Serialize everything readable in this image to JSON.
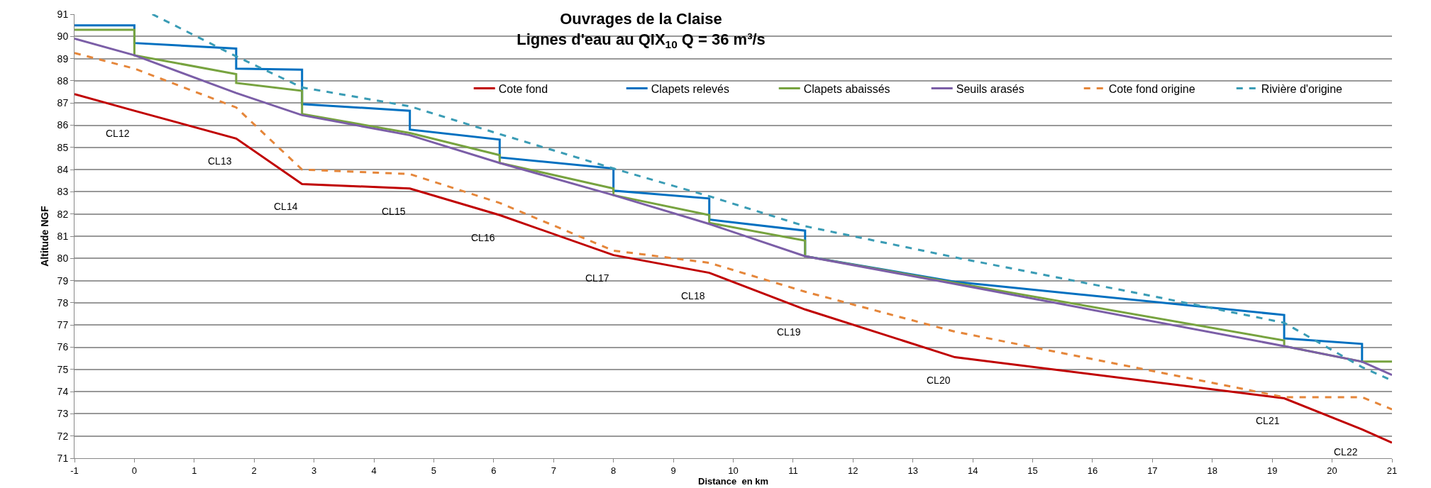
{
  "chart_data": {
    "type": "line",
    "title": "Ouvrages de la Claise",
    "subtitle": "Lignes d'eau au QIX$_{10}$ Q = 36 m³/s",
    "xlabel": "Distance  en km",
    "ylabel": "Altitude NGF",
    "xlim": [
      -1,
      21
    ],
    "xticks": [
      -1,
      0,
      1,
      2,
      3,
      4,
      5,
      6,
      7,
      8,
      9,
      10,
      11,
      12,
      13,
      14,
      15,
      16,
      17,
      18,
      19,
      20,
      21
    ],
    "ylim": [
      71,
      91
    ],
    "yticks": [
      71,
      72,
      73,
      74,
      75,
      76,
      77,
      78,
      79,
      80,
      81,
      82,
      83,
      84,
      85,
      86,
      87,
      88,
      89,
      90,
      91
    ],
    "grid": "y",
    "legend": "right",
    "marker": "none",
    "series": [
      {
        "name": "Cote fond",
        "color": "#c00000",
        "line_style": "solid",
        "x": [
          -1,
          0,
          1.7,
          2.8,
          4.6,
          6.1,
          8,
          9.6,
          11.2,
          13.7,
          19.2,
          20.5,
          21
        ],
        "values": [
          87.4,
          86.65,
          85.4,
          83.35,
          83.15,
          81.95,
          80.15,
          79.35,
          77.7,
          75.55,
          73.7,
          72.3,
          71.7
        ]
      },
      {
        "name": "Clapets relevés",
        "color": "#0070c0",
        "line_style": "solid",
        "x": [
          -1,
          0,
          0,
          1.7,
          1.7,
          2.8,
          2.8,
          4.6,
          4.6,
          6.1,
          6.1,
          8,
          8,
          9.6,
          9.6,
          11.2,
          11.2,
          13.7,
          19.2,
          19.2,
          20.5,
          20.5
        ],
        "values": [
          90.5,
          90.5,
          89.7,
          89.45,
          88.55,
          88.5,
          86.95,
          86.65,
          85.8,
          85.35,
          84.55,
          84.05,
          83.05,
          82.7,
          81.75,
          81.25,
          80.1,
          78.95,
          77.45,
          76.4,
          76.15,
          75.3
        ]
      },
      {
        "name": "Clapets abaissés",
        "color": "#77a33f",
        "line_style": "solid",
        "x": [
          -1,
          0,
          0,
          1.7,
          1.7,
          2.8,
          2.8,
          4.6,
          6.1,
          6.1,
          8,
          8,
          9.6,
          9.6,
          11.2,
          11.2,
          13.7,
          19.2,
          19.2,
          20.5,
          21
        ],
        "values": [
          90.3,
          90.3,
          89.15,
          88.3,
          87.9,
          87.55,
          86.5,
          85.65,
          84.65,
          84.3,
          83.15,
          82.85,
          81.95,
          81.6,
          80.8,
          80.1,
          78.9,
          76.3,
          76.05,
          75.35,
          75.35
        ]
      },
      {
        "name": "Seuils arasés",
        "color": "#7b5ea7",
        "line_style": "solid",
        "x": [
          -1,
          0,
          1.7,
          2.8,
          4.6,
          6.1,
          8,
          9.6,
          11.2,
          13.7,
          19.2,
          20.5,
          21
        ],
        "values": [
          89.9,
          89.15,
          87.45,
          86.45,
          85.55,
          84.3,
          82.85,
          81.55,
          80.1,
          78.85,
          76.05,
          75.35,
          74.75
        ]
      },
      {
        "name": "Cote fond origine",
        "color": "#e5863a",
        "line_style": "dashed",
        "x": [
          -1,
          0,
          1.7,
          2.8,
          4.6,
          6.1,
          8,
          9.6,
          11.2,
          13.7,
          19.2,
          20.5,
          21
        ],
        "values": [
          89.25,
          88.55,
          86.8,
          84.0,
          83.8,
          82.5,
          80.35,
          79.8,
          78.5,
          76.7,
          73.75,
          73.75,
          73.2
        ]
      },
      {
        "name": "Rivière d'origine",
        "color": "#3a9cb5",
        "line_style": "dashed",
        "x": [
          0.3,
          1.7,
          2.8,
          4.6,
          6.1,
          8,
          9.6,
          11.2,
          13.7,
          17,
          19.2,
          20.5,
          21
        ],
        "values": [
          91,
          89.1,
          87.7,
          86.85,
          85.6,
          84.05,
          82.8,
          81.45,
          80.05,
          78.3,
          77.1,
          75.1,
          74.5
        ]
      }
    ],
    "annotations": [
      "CL12",
      "CL13",
      "CL14",
      "CL15",
      "CL16",
      "CL17",
      "CL18",
      "CL19",
      "CL20",
      "CL21",
      "CL22"
    ]
  }
}
